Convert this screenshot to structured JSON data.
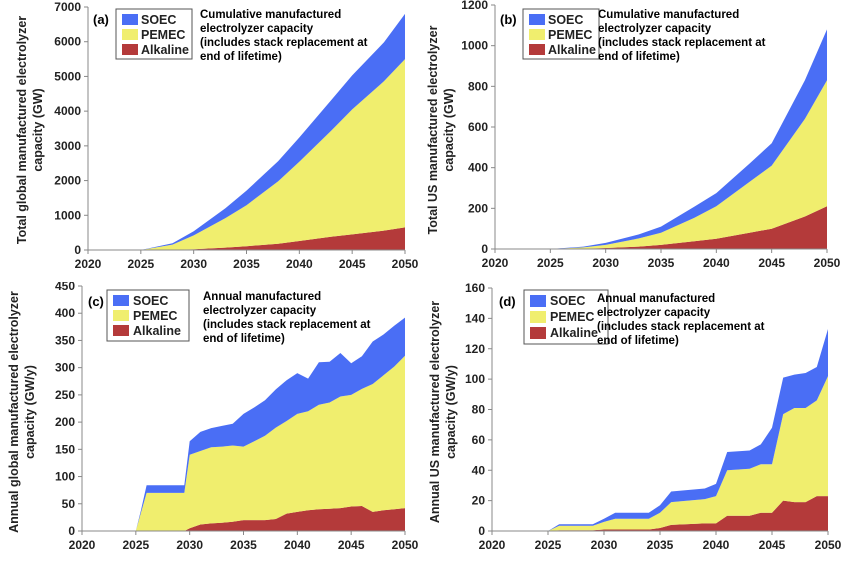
{
  "colors": {
    "soec": "#4a6ef5",
    "pemec": "#f0ee6e",
    "alkaline": "#b43a3a",
    "axis": "#888888"
  },
  "chart_data": [
    {
      "type": "area",
      "panel_label": "(a)",
      "annotation": [
        "Cumulative manufactured",
        "electrolyzer capacity",
        "(includes stack replacement at",
        "end of lifetime)"
      ],
      "ylabel": [
        "Total global manufactured electrolyzer",
        "capacity (GW)"
      ],
      "legend": [
        "SOEC",
        "PEMEC",
        "Alkaline"
      ],
      "x": [
        2020,
        2025,
        2028,
        2030,
        2033,
        2035,
        2038,
        2040,
        2043,
        2045,
        2048,
        2050
      ],
      "series": [
        {
          "name": "Alkaline",
          "values": [
            0,
            0,
            5,
            20,
            70,
            110,
            180,
            260,
            380,
            450,
            560,
            650
          ]
        },
        {
          "name": "PEMEC",
          "values": [
            0,
            0,
            150,
            400,
            850,
            1180,
            1800,
            2280,
            3050,
            3600,
            4300,
            4850
          ]
        },
        {
          "name": "SOEC",
          "values": [
            0,
            0,
            40,
            120,
            280,
            420,
            580,
            700,
            880,
            980,
            1120,
            1300
          ]
        }
      ],
      "xticks": [
        "2020",
        "2025",
        "2030",
        "2035",
        "2040",
        "2045",
        "2050"
      ],
      "yticks": [
        "0",
        "1000",
        "2000",
        "3000",
        "4000",
        "5000",
        "6000",
        "7000"
      ],
      "ylim": [
        0,
        7000
      ],
      "xlim": [
        2020,
        2050
      ],
      "legend_position": "top-left"
    },
    {
      "type": "area",
      "panel_label": "(b)",
      "annotation": [
        "Cumulative manufactured",
        "electrolyzer capacity",
        "(includes stack replacement at",
        "end of lifetime)"
      ],
      "ylabel": [
        "Total US manufactured electrolyzer",
        "capacity (GW)"
      ],
      "legend": [
        "SOEC",
        "PEMEC",
        "Alkaline"
      ],
      "x": [
        2020,
        2025,
        2028,
        2030,
        2033,
        2035,
        2038,
        2040,
        2043,
        2045,
        2048,
        2050
      ],
      "series": [
        {
          "name": "Alkaline",
          "values": [
            0,
            0,
            2,
            5,
            12,
            20,
            38,
            50,
            80,
            100,
            160,
            210
          ]
        },
        {
          "name": "PEMEC",
          "values": [
            0,
            0,
            6,
            15,
            40,
            60,
            115,
            160,
            250,
            310,
            480,
            620
          ]
        },
        {
          "name": "SOEC",
          "values": [
            0,
            0,
            4,
            10,
            20,
            30,
            55,
            65,
            90,
            110,
            190,
            250
          ]
        }
      ],
      "xticks": [
        "2020",
        "2025",
        "2030",
        "2035",
        "2040",
        "2045",
        "2050"
      ],
      "yticks": [
        "0",
        "200",
        "400",
        "600",
        "800",
        "1000",
        "1200"
      ],
      "ylim": [
        0,
        1200
      ],
      "xlim": [
        2020,
        2050
      ],
      "legend_position": "top-left"
    },
    {
      "type": "area",
      "panel_label": "(c)",
      "annotation": [
        "Annual manufactured",
        "electrolyzer capacity",
        "(includes stack replacement at",
        "end of lifetime)"
      ],
      "ylabel": [
        "Annual global manufactured electrolyzer",
        "capacity (GW/y)"
      ],
      "legend": [
        "SOEC",
        "PEMEC",
        "Alkaline"
      ],
      "x": [
        2020,
        2025,
        2025.5,
        2026,
        2029,
        2029.5,
        2030,
        2031,
        2032,
        2033,
        2034,
        2035,
        2036,
        2037,
        2038,
        2039,
        2040,
        2041,
        2042,
        2043,
        2044,
        2045,
        2046,
        2047,
        2048,
        2049,
        2050
      ],
      "series": [
        {
          "name": "Alkaline",
          "values": [
            0,
            0,
            0,
            0,
            0,
            0,
            5,
            12,
            14,
            15,
            17,
            20,
            20,
            20,
            22,
            32,
            35,
            38,
            40,
            41,
            42,
            45,
            46,
            35,
            38,
            40,
            42
          ]
        },
        {
          "name": "PEMEC",
          "values": [
            0,
            0,
            35,
            70,
            70,
            70,
            135,
            135,
            140,
            140,
            140,
            135,
            145,
            155,
            168,
            170,
            180,
            182,
            192,
            195,
            205,
            205,
            215,
            235,
            248,
            262,
            280
          ]
        },
        {
          "name": "SOEC",
          "values": [
            0,
            0,
            5,
            14,
            14,
            14,
            25,
            35,
            35,
            38,
            40,
            60,
            62,
            65,
            70,
            75,
            75,
            60,
            78,
            75,
            80,
            58,
            60,
            78,
            75,
            75,
            70
          ]
        }
      ],
      "xticks": [
        "2020",
        "2025",
        "2030",
        "2035",
        "2040",
        "2045",
        "2050"
      ],
      "yticks": [
        "0",
        "50",
        "100",
        "150",
        "200",
        "250",
        "300",
        "350",
        "400",
        "450"
      ],
      "ylim": [
        0,
        450
      ],
      "xlim": [
        2020,
        2050
      ],
      "legend_position": "top-left"
    },
    {
      "type": "area",
      "panel_label": "(d)",
      "annotation": [
        "Annual manufactured",
        "electrolyzer capacity",
        "(includes stack replacement at",
        "end of lifetime)"
      ],
      "ylabel": [
        "Annual US manufactured electrolyzer",
        "capacity (GW/y)"
      ],
      "legend": [
        "SOEC",
        "PEMEC",
        "Alkaline"
      ],
      "x": [
        2020,
        2025,
        2026,
        2029,
        2030,
        2031,
        2034,
        2035,
        2036,
        2039,
        2040,
        2041,
        2043,
        2044,
        2045,
        2046,
        2047,
        2048,
        2049,
        2050
      ],
      "series": [
        {
          "name": "Alkaline",
          "values": [
            0,
            0,
            0.5,
            0.5,
            1,
            1,
            1,
            2,
            4,
            5,
            5,
            10,
            10,
            12,
            12,
            20,
            19,
            19,
            23,
            23
          ]
        },
        {
          "name": "PEMEC",
          "values": [
            0,
            0,
            3,
            3,
            5,
            7,
            7,
            10,
            15,
            16,
            18,
            30,
            31,
            32,
            32,
            57,
            62,
            62,
            63,
            79
          ]
        },
        {
          "name": "SOEC",
          "values": [
            0,
            0,
            1,
            1,
            2,
            4,
            4,
            5,
            7,
            7,
            8,
            12,
            12,
            13,
            24,
            24,
            22,
            23,
            22,
            31
          ]
        }
      ],
      "xticks": [
        "2020",
        "2025",
        "2030",
        "2035",
        "2040",
        "2045",
        "2050"
      ],
      "yticks": [
        "0",
        "20",
        "40",
        "60",
        "80",
        "100",
        "120",
        "140",
        "160"
      ],
      "ylim": [
        0,
        160
      ],
      "xlim": [
        2020,
        2050
      ],
      "legend_position": "top-left"
    }
  ]
}
